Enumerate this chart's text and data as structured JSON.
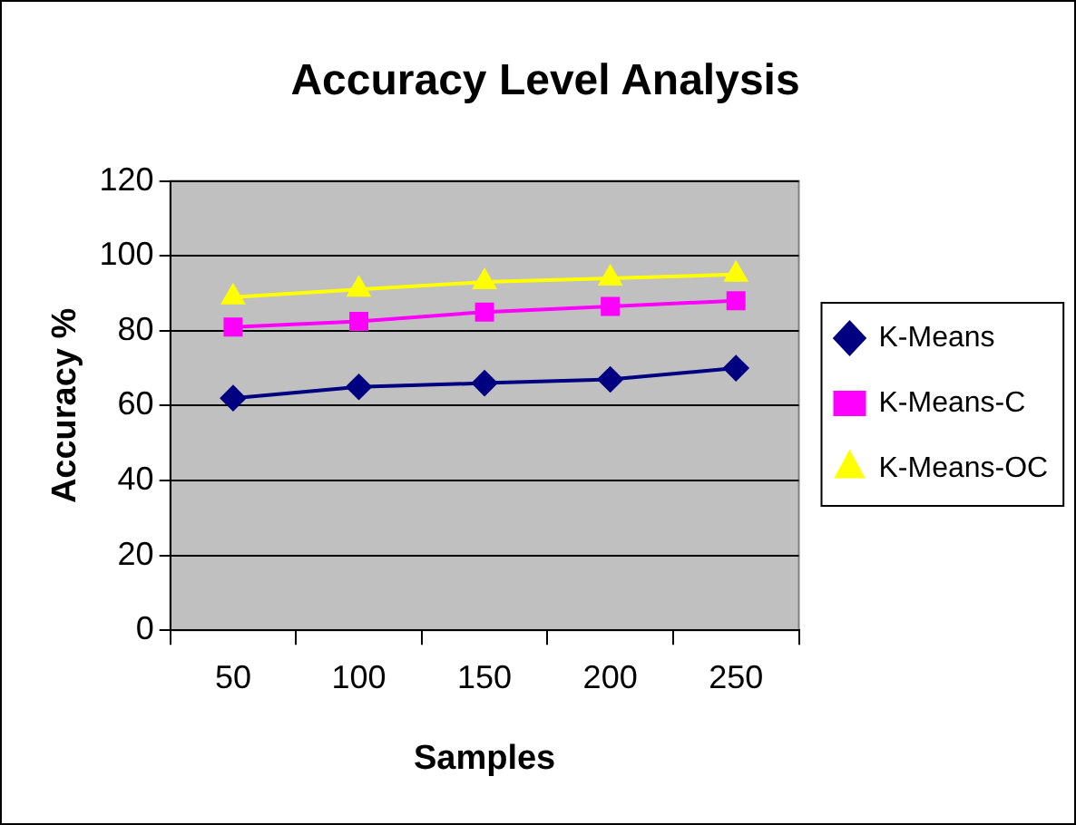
{
  "chart_data": {
    "type": "line",
    "title": "Accuracy Level Analysis",
    "xlabel": "Samples",
    "ylabel": "Accuracy %",
    "categories": [
      "50",
      "100",
      "150",
      "200",
      "250"
    ],
    "series": [
      {
        "name": "K-Means",
        "color": "#000080",
        "marker": "diamond",
        "values": [
          62,
          65,
          66,
          67,
          70
        ]
      },
      {
        "name": "K-Means-C",
        "color": "#ff00ff",
        "marker": "square",
        "values": [
          81,
          82.5,
          85,
          86.5,
          88
        ]
      },
      {
        "name": "K-Means-OC",
        "color": "#ffff00",
        "marker": "triangle",
        "values": [
          89,
          91,
          93,
          94,
          95
        ]
      }
    ],
    "ylim": [
      0,
      120
    ],
    "yticks": [
      0,
      20,
      40,
      60,
      80,
      100,
      120
    ],
    "grid": "y",
    "legend": "right"
  }
}
